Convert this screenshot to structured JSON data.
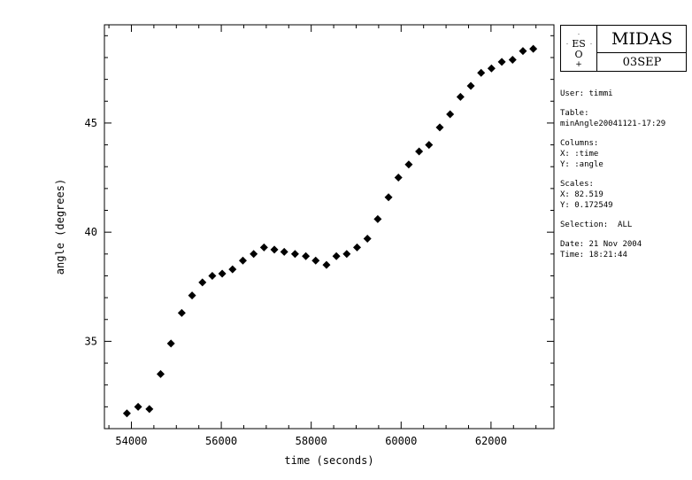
{
  "chart_data": {
    "type": "scatter",
    "xlabel": "time (seconds)",
    "ylabel": "angle (degrees)",
    "xlim": [
      53400,
      63400
    ],
    "ylim": [
      31.0,
      49.5
    ],
    "xticks": [
      54000,
      56000,
      58000,
      60000,
      62000
    ],
    "yticks": [
      35,
      40,
      45
    ],
    "grid": false,
    "marker": "diamond",
    "points": [
      {
        "x": 53900,
        "y": 31.7
      },
      {
        "x": 54150,
        "y": 32.0
      },
      {
        "x": 54400,
        "y": 31.9
      },
      {
        "x": 54650,
        "y": 33.5
      },
      {
        "x": 54880,
        "y": 34.9
      },
      {
        "x": 55120,
        "y": 36.3
      },
      {
        "x": 55350,
        "y": 37.1
      },
      {
        "x": 55580,
        "y": 37.7
      },
      {
        "x": 55800,
        "y": 38.0
      },
      {
        "x": 56020,
        "y": 38.1
      },
      {
        "x": 56250,
        "y": 38.3
      },
      {
        "x": 56480,
        "y": 38.7
      },
      {
        "x": 56720,
        "y": 39.0
      },
      {
        "x": 56950,
        "y": 39.3
      },
      {
        "x": 57180,
        "y": 39.2
      },
      {
        "x": 57400,
        "y": 39.1
      },
      {
        "x": 57640,
        "y": 39.0
      },
      {
        "x": 57880,
        "y": 38.9
      },
      {
        "x": 58100,
        "y": 38.7
      },
      {
        "x": 58340,
        "y": 38.5
      },
      {
        "x": 58560,
        "y": 38.9
      },
      {
        "x": 58790,
        "y": 39.0
      },
      {
        "x": 59020,
        "y": 39.3
      },
      {
        "x": 59250,
        "y": 39.7
      },
      {
        "x": 59480,
        "y": 40.6
      },
      {
        "x": 59720,
        "y": 41.6
      },
      {
        "x": 59940,
        "y": 42.5
      },
      {
        "x": 60170,
        "y": 43.1
      },
      {
        "x": 60400,
        "y": 43.7
      },
      {
        "x": 60620,
        "y": 44.0
      },
      {
        "x": 60860,
        "y": 44.8
      },
      {
        "x": 61090,
        "y": 45.4
      },
      {
        "x": 61320,
        "y": 46.2
      },
      {
        "x": 61550,
        "y": 46.7
      },
      {
        "x": 61780,
        "y": 47.3
      },
      {
        "x": 62010,
        "y": 47.5
      },
      {
        "x": 62240,
        "y": 47.8
      },
      {
        "x": 62480,
        "y": 47.9
      },
      {
        "x": 62710,
        "y": 48.3
      },
      {
        "x": 62940,
        "y": 48.4
      }
    ]
  },
  "logo": {
    "eso_text": "ES",
    "eso_sub": "O",
    "title": "MIDAS",
    "date_code": "03SEP"
  },
  "info": {
    "user": "User: timmi",
    "table_label": "Table:",
    "table_name": "minAngle20041121-17:29",
    "columns_label": "Columns:",
    "col_x": "X: :time",
    "col_y": "Y: :angle",
    "scales_label": "Scales:",
    "scale_x": "X: 82.519",
    "scale_y": "Y: 0.172549",
    "selection": "Selection:  ALL",
    "date": "Date: 21 Nov 2004",
    "time": "Time: 18:21:44"
  }
}
